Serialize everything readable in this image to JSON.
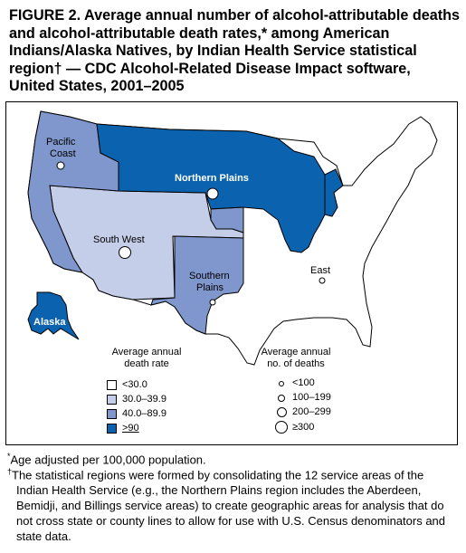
{
  "title": "FIGURE 2. Average annual number of alcohol-attributable deaths and alcohol-attributable death rates,* among American Indians/Alaska Natives, by Indian Health Service statistical region† — CDC Alcohol-Related Disease Impact software, United States, 2001–2005",
  "colors": {
    "lt30": "#ffffff",
    "r30_39": "#c5cee9",
    "r40_89": "#7f97cc",
    "ge90": "#0b63b0",
    "outline": "#000000"
  },
  "regions": [
    {
      "id": "pacific-coast",
      "name": "Pacific Coast",
      "rate_class": "40.0–89.9",
      "deaths_class": "<100"
    },
    {
      "id": "northern-plains",
      "name": "Northern Plains",
      "rate_class": ">90",
      "deaths_class": "200–299"
    },
    {
      "id": "south-west",
      "name": "South West",
      "rate_class": "30.0–39.9",
      "deaths_class": "≥300"
    },
    {
      "id": "southern-plains",
      "name": "Southern Plains",
      "rate_class": "40.0–89.9",
      "deaths_class": "<100"
    },
    {
      "id": "east",
      "name": "East",
      "rate_class": "<30.0",
      "deaths_class": "<100"
    },
    {
      "id": "alaska",
      "name": "Alaska",
      "rate_class": ">90",
      "deaths_class": "<100"
    }
  ],
  "labels": {
    "pacific_l1": "Pacific",
    "pacific_l2": "Coast",
    "northern_plains": "Northern Plains",
    "south_west": "South West",
    "southern_l1": "Southern",
    "southern_l2": "Plains",
    "east": "East",
    "alaska": "Alaska"
  },
  "legend_rate": {
    "title_l1": "Average annual",
    "title_l2": "death rate",
    "items": [
      "<30.0",
      "30.0–39.9",
      "40.0–89.9",
      ">90"
    ]
  },
  "legend_deaths": {
    "title_l1": "Average annual",
    "title_l2": "no. of deaths",
    "items": [
      "<100",
      "100–199",
      "200–299",
      "≥300"
    ]
  },
  "footnotes": {
    "star_mark": "*",
    "star_text": "Age adjusted per 100,000 population.",
    "dagger_mark": "†",
    "dagger_text": "The statistical regions were formed by consolidating the 12 service areas of the Indian Health Service (e.g., the Northern Plains region includes the Aberdeen, Bemidji, and Billings service areas) to create geographic areas for analysis that do not cross state or county lines to allow for use with U.S. Census denominators and state data."
  }
}
